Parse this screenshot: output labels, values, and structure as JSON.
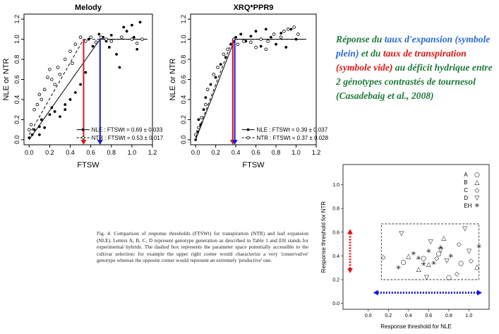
{
  "chart_data": [
    {
      "type": "scatter",
      "title": "Melody",
      "xlabel": "FTSW",
      "ylabel": "NLE or NTR",
      "xlim": [
        -0.05,
        1.2
      ],
      "ylim": [
        -0.05,
        1.25
      ],
      "xticks": [
        "0.0",
        "0.2",
        "0.4",
        "0.6",
        "0.8",
        "1.0",
        "1.2"
      ],
      "yticks": [
        "0.0",
        "0.2",
        "0.4",
        "0.6",
        "0.8",
        "1.0",
        "1.2"
      ],
      "legend": [
        "NLE : FTSWt = 0.69 ± 0.033",
        "NTR : FTSWt = 0.53 ± 0.017"
      ],
      "series": [
        {
          "name": "NLE",
          "style": "filled",
          "threshold": 0.69,
          "points": [
            [
              0.0,
              0.02
            ],
            [
              0.03,
              0.05
            ],
            [
              0.05,
              0.1
            ],
            [
              0.1,
              0.13
            ],
            [
              0.12,
              0.2
            ],
            [
              0.15,
              0.12
            ],
            [
              0.2,
              0.25
            ],
            [
              0.22,
              0.32
            ],
            [
              0.25,
              0.28
            ],
            [
              0.3,
              0.23
            ],
            [
              0.35,
              0.3
            ],
            [
              0.4,
              0.4
            ],
            [
              0.45,
              0.47
            ],
            [
              0.5,
              0.55
            ],
            [
              0.55,
              0.67
            ],
            [
              0.58,
              1.0
            ],
            [
              0.62,
              0.93
            ],
            [
              0.68,
              1.05
            ],
            [
              0.72,
              1.02
            ],
            [
              0.75,
              0.98
            ],
            [
              0.8,
              1.04
            ],
            [
              0.85,
              0.85
            ],
            [
              0.88,
              0.72
            ],
            [
              0.92,
              1.12
            ],
            [
              0.95,
              1.08
            ],
            [
              1.0,
              1.14
            ],
            [
              1.02,
              1.02
            ],
            [
              1.05,
              0.9
            ],
            [
              1.08,
              1.17
            ],
            [
              0.78,
              0.92
            ],
            [
              0.35,
              0.35
            ],
            [
              0.1,
              0.05
            ]
          ]
        },
        {
          "name": "NTR",
          "style": "open",
          "threshold": 0.53,
          "points": [
            [
              0.0,
              0.1
            ],
            [
              0.02,
              0.15
            ],
            [
              0.05,
              0.3
            ],
            [
              0.08,
              0.35
            ],
            [
              0.1,
              0.45
            ],
            [
              0.15,
              0.5
            ],
            [
              0.18,
              0.62
            ],
            [
              0.2,
              0.7
            ],
            [
              0.25,
              0.55
            ],
            [
              0.28,
              0.72
            ],
            [
              0.3,
              0.65
            ],
            [
              0.35,
              0.8
            ],
            [
              0.4,
              0.88
            ],
            [
              0.42,
              0.76
            ],
            [
              0.45,
              0.95
            ],
            [
              0.5,
              1.02
            ],
            [
              0.55,
              0.98
            ],
            [
              0.6,
              1.02
            ],
            [
              0.65,
              0.97
            ],
            [
              0.7,
              1.02
            ],
            [
              0.75,
              1.0
            ],
            [
              0.8,
              0.98
            ],
            [
              0.9,
              1.02
            ],
            [
              1.0,
              1.0
            ],
            [
              1.05,
              0.96
            ],
            [
              1.1,
              1.0
            ],
            [
              0.12,
              0.4
            ],
            [
              0.22,
              0.6
            ]
          ]
        }
      ],
      "fit_nle": [
        [
          0.0,
          0.0
        ],
        [
          0.69,
          1.0
        ],
        [
          1.15,
          1.0
        ]
      ],
      "fit_ntr": [
        [
          0.0,
          0.05
        ],
        [
          0.53,
          1.0
        ],
        [
          1.15,
          1.0
        ]
      ]
    },
    {
      "type": "scatter",
      "title": "XRQ*PPR9",
      "xlabel": "FTSW",
      "ylabel": "NLE or NTR",
      "xlim": [
        -0.05,
        1.2
      ],
      "ylim": [
        -0.05,
        1.25
      ],
      "xticks": [
        "0.0",
        "0.2",
        "0.4",
        "0.6",
        "0.8",
        "1.0",
        "1.2"
      ],
      "yticks": [
        "0.0",
        "0.2",
        "0.4",
        "0.6",
        "0.8",
        "1.0",
        "1.2"
      ],
      "legend": [
        "NLE : FTSWt = 0.39 ± 0.037",
        "NTR : FTSWt = 0.37 ± 0.028"
      ],
      "series": [
        {
          "name": "NLE",
          "style": "filled",
          "threshold": 0.39,
          "points": [
            [
              0.0,
              0.0
            ],
            [
              0.02,
              0.08
            ],
            [
              0.05,
              0.15
            ],
            [
              0.08,
              0.3
            ],
            [
              0.1,
              0.42
            ],
            [
              0.15,
              0.55
            ],
            [
              0.2,
              0.62
            ],
            [
              0.25,
              0.75
            ],
            [
              0.3,
              0.82
            ],
            [
              0.35,
              0.95
            ],
            [
              0.4,
              1.02
            ],
            [
              0.45,
              1.05
            ],
            [
              0.5,
              0.98
            ],
            [
              0.55,
              1.03
            ],
            [
              0.6,
              1.08
            ],
            [
              0.65,
              0.93
            ],
            [
              0.7,
              1.1
            ],
            [
              0.75,
              1.02
            ],
            [
              0.8,
              0.95
            ],
            [
              0.85,
              1.06
            ],
            [
              0.9,
              0.92
            ],
            [
              0.95,
              1.1
            ],
            [
              1.0,
              1.0
            ],
            [
              0.03,
              0.2
            ]
          ]
        },
        {
          "name": "NTR",
          "style": "open",
          "threshold": 0.37,
          "points": [
            [
              0.0,
              0.05
            ],
            [
              0.03,
              0.12
            ],
            [
              0.06,
              0.22
            ],
            [
              0.1,
              0.35
            ],
            [
              0.12,
              0.5
            ],
            [
              0.18,
              0.65
            ],
            [
              0.22,
              0.72
            ],
            [
              0.28,
              0.85
            ],
            [
              0.32,
              0.9
            ],
            [
              0.38,
              1.0
            ],
            [
              0.42,
              0.95
            ],
            [
              0.48,
              0.98
            ],
            [
              0.55,
              0.97
            ],
            [
              0.6,
              0.92
            ],
            [
              0.65,
              1.0
            ],
            [
              0.72,
              0.98
            ],
            [
              0.78,
              1.05
            ],
            [
              0.85,
              1.02
            ],
            [
              0.92,
              1.1
            ],
            [
              0.98,
              1.12
            ],
            [
              1.02,
              1.05
            ],
            [
              0.7,
              0.9
            ],
            [
              0.88,
              1.08
            ]
          ]
        }
      ],
      "fit_nle": [
        [
          0.0,
          0.0
        ],
        [
          0.39,
          1.0
        ],
        [
          1.1,
          1.0
        ]
      ],
      "fit_ntr": [
        [
          0.0,
          0.02
        ],
        [
          0.37,
          1.0
        ],
        [
          1.1,
          1.0
        ]
      ]
    },
    {
      "type": "scatter",
      "title": "",
      "xlabel": "Response threshold for NLE",
      "ylabel": "Response threshold for NTR",
      "xlim": [
        -0.25,
        1.2
      ],
      "ylim": [
        -0.05,
        1.17
      ],
      "xticks": [
        "0.0",
        "0.2",
        "0.4",
        "0.6",
        "0.8",
        "1.0"
      ],
      "yticks": [
        "0.0",
        "0.2",
        "0.4",
        "0.6",
        "0.8",
        "1.0"
      ],
      "legend": [
        "A",
        "B",
        "C",
        "D",
        "EH"
      ],
      "legend_symbols": [
        "○",
        "△",
        "◇",
        "▽",
        "✳"
      ],
      "dashed_box": {
        "x": [
          0.13,
          1.1
        ],
        "y": [
          0.2,
          0.67
        ]
      },
      "series": [
        {
          "name": "A",
          "symbol": "○",
          "points": [
            [
              0.35,
              0.35
            ],
            [
              0.55,
              0.38
            ],
            [
              0.7,
              0.42
            ],
            [
              0.8,
              0.22
            ],
            [
              0.92,
              0.34
            ]
          ]
        },
        {
          "name": "B",
          "symbol": "△",
          "points": [
            [
              0.4,
              0.4
            ],
            [
              0.6,
              0.33
            ],
            [
              0.75,
              0.55
            ],
            [
              1.08,
              0.31
            ],
            [
              0.5,
              0.29
            ]
          ]
        },
        {
          "name": "C",
          "symbol": "◇",
          "points": [
            [
              0.15,
              0.39
            ],
            [
              0.68,
              0.38
            ],
            [
              0.9,
              0.5
            ],
            [
              1.02,
              0.36
            ],
            [
              0.88,
              0.25
            ]
          ]
        },
        {
          "name": "D",
          "symbol": "▽",
          "points": [
            [
              0.33,
              0.59
            ],
            [
              0.62,
              0.52
            ],
            [
              0.72,
              0.45
            ],
            [
              0.78,
              0.36
            ],
            [
              0.96,
              0.63
            ],
            [
              1.0,
              0.44
            ],
            [
              0.58,
              0.22
            ]
          ]
        },
        {
          "name": "EH",
          "symbol": "✳",
          "points": [
            [
              0.3,
              0.3
            ],
            [
              0.45,
              0.42
            ],
            [
              0.5,
              0.38
            ],
            [
              0.55,
              0.33
            ],
            [
              0.6,
              0.44
            ],
            [
              0.65,
              0.34
            ],
            [
              0.72,
              0.47
            ],
            [
              0.82,
              0.4
            ],
            [
              1.1,
              0.48
            ]
          ]
        }
      ]
    }
  ],
  "caption": "Fig. 4. Comparison of response thresholds (FTSWt) for transpiration (NTR) and leaf expansion (NLE). Letters A, B, C, D represent genotype generation as described in Table 1 and EH stands for experimental hybrids. The dashed box represents the parameter space potentially accessible to the cultivar selection: for example the upper right corner would characterize a very 'conservative' genotype whereas the opposite corner would represent an extremely 'productive' one.",
  "annotation": {
    "part1": "Réponse du ",
    "part2": "taux d'expansion (symbole plein)",
    "part3": " et du ",
    "part4": "taux de transpiration (symbole vide)",
    "part5": " au déficit hydrique entre 2 génotypes contrastés de tournesol (Casadebaig et al., 2008)"
  },
  "colors": {
    "red": "#e01515",
    "blue": "#1a1adb",
    "green": "#1e7a3a",
    "lightblue": "#2a6bd1"
  }
}
